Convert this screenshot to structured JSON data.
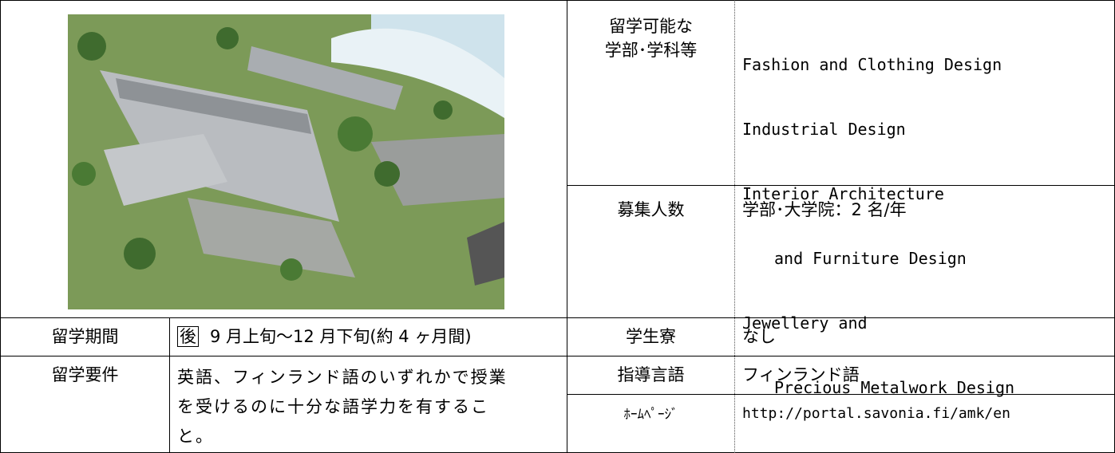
{
  "table": {
    "departments": {
      "label": [
        "留学可能な",
        "学部･学科等"
      ],
      "lines": [
        "Fashion and Clothing Design",
        "Industrial Design",
        "Interior Architecture",
        "and Furniture Design",
        "Jewellery and",
        "Precious Metalwork Design"
      ]
    },
    "quota": {
      "label": "募集人数",
      "value": "学部･大学院：2 名/年"
    },
    "period": {
      "label": "留学期間",
      "badge": "後",
      "value": "9 月上旬～12 月下旬(約 4 ヶ月間)"
    },
    "dormitory": {
      "label": "学生寮",
      "value": "なし"
    },
    "requirements": {
      "label": "留学要件",
      "lines": [
        "英語、フィンランド語のいずれかで授業",
        "を受けるのに十分な語学力を有するこ",
        "と。"
      ]
    },
    "language": {
      "label": "指導言語",
      "value": "フィンランド語"
    },
    "homepage": {
      "label": "ﾎｰﾑﾍﾟｰｼﾞ",
      "value": "http://portal.savonia.fi/amk/en"
    }
  }
}
